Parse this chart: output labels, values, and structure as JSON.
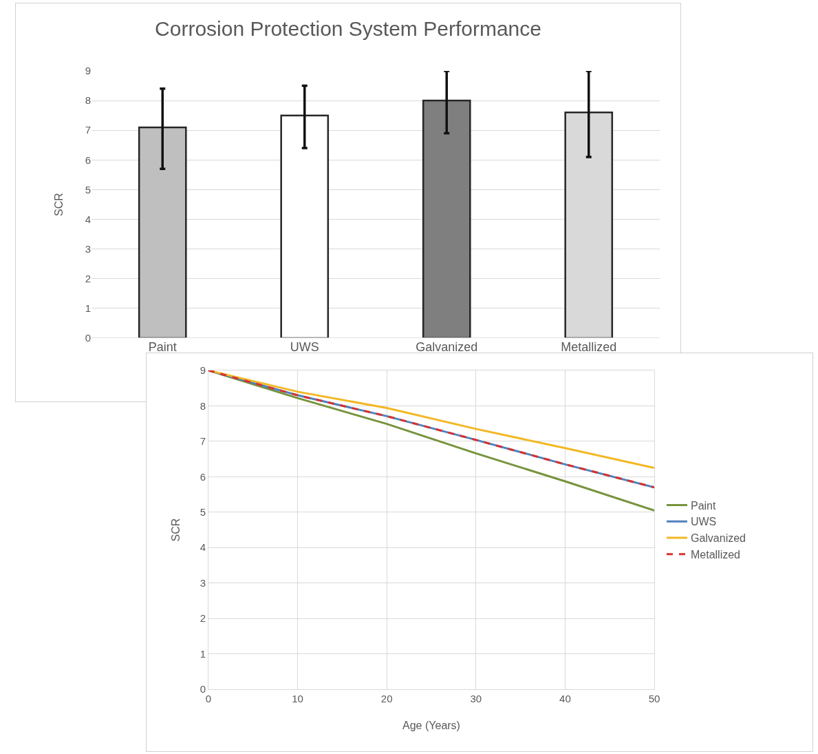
{
  "chart_data": [
    {
      "type": "bar",
      "title": "Corrosion Protection System Performance",
      "ylabel": "SCR",
      "categories": [
        "Paint",
        "UWS",
        "Galvanized",
        "Metallized"
      ],
      "values": [
        7.1,
        7.5,
        8.0,
        7.6
      ],
      "colors": [
        "#bfbfbf",
        "#ffffff",
        "#7f7f7f",
        "#d9d9d9"
      ],
      "errors": [
        [
          5.7,
          8.4
        ],
        [
          6.4,
          8.5
        ],
        [
          6.9,
          9.0
        ],
        [
          6.1,
          9.0
        ]
      ],
      "ylim": [
        0,
        9
      ],
      "yticks": [
        0,
        1,
        2,
        3,
        4,
        5,
        6,
        7,
        8,
        9
      ],
      "grid": "y",
      "legend": false
    },
    {
      "type": "line",
      "xlabel": "Age (Years)",
      "ylabel": "SCR",
      "x": [
        0,
        10,
        20,
        30,
        40,
        50
      ],
      "xlim": [
        0,
        50
      ],
      "xticks": [
        0,
        10,
        20,
        30,
        40,
        50
      ],
      "ylim": [
        0,
        9
      ],
      "yticks": [
        0,
        1,
        2,
        3,
        4,
        5,
        6,
        7,
        8,
        9
      ],
      "grid": true,
      "legend": "right",
      "marker": "none",
      "series": [
        {
          "name": "Paint",
          "color": "#77933c",
          "values": [
            9,
            8.22,
            7.49,
            6.66,
            5.87,
            5.05
          ]
        },
        {
          "name": "UWS",
          "color": "#4f81bd",
          "values": [
            9,
            8.3,
            7.71,
            7.04,
            6.35,
            5.7
          ]
        },
        {
          "name": "Galvanized",
          "color": "#f2b824",
          "values": [
            9,
            8.4,
            7.94,
            7.35,
            6.81,
            6.25
          ]
        },
        {
          "name": "Metallized",
          "color": "#d7322f",
          "values": [
            9,
            8.3,
            7.71,
            7.04,
            6.35,
            5.7
          ],
          "line_style": "dashed"
        }
      ]
    }
  ]
}
